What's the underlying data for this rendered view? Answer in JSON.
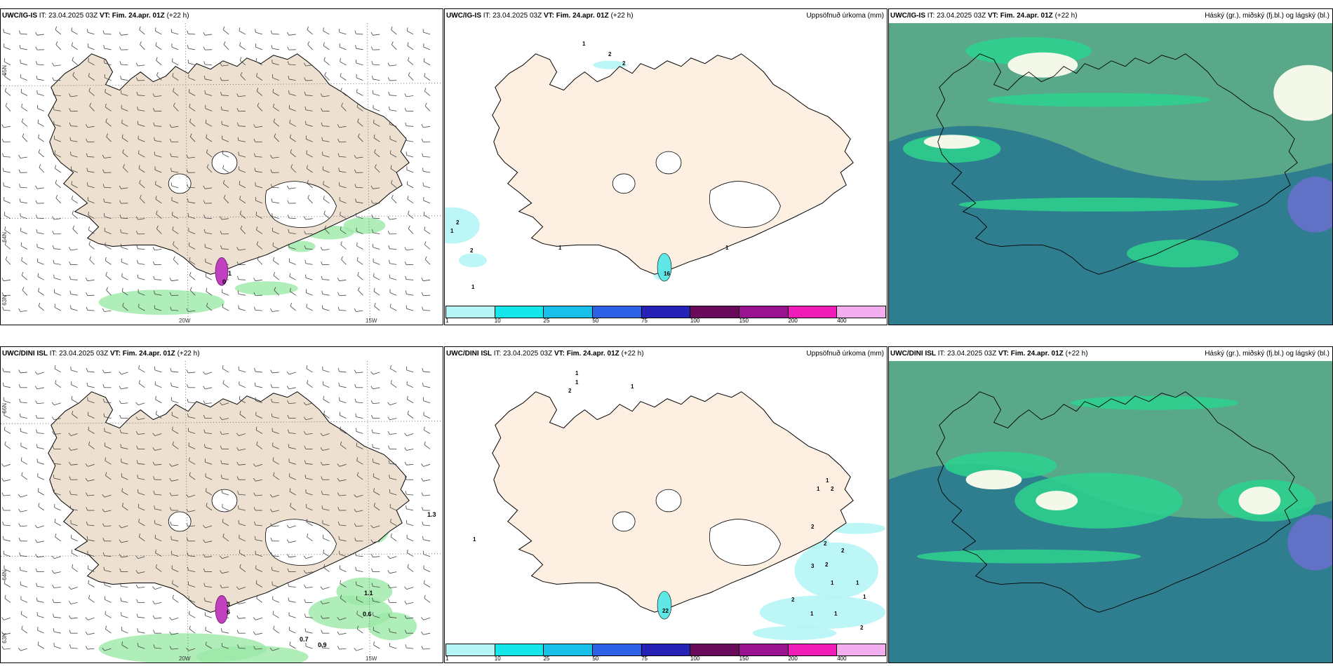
{
  "colors": {
    "land": "#ede0d0",
    "land_light": "#fdf0e3",
    "cloud_dark": "#2f7e8f",
    "cloud_mid": "#5aa88a",
    "cloud_green": "#2ecf8e",
    "cloud_light": "#c9e9b2",
    "precip_green": "#9be8a8",
    "precip_cyan": "#5fe6e6",
    "purple": "#c040c0"
  },
  "rows": [
    {
      "model": "UWC/IG-IS",
      "wind_panel": {
        "header_it_label": "IT:",
        "header_it": "23.04.2025 03Z",
        "header_vt_label": "VT:",
        "header_vt": "Fim. 24.apr. 01Z",
        "header_lead": "(+22 h)",
        "lat_labels": [
          "65N",
          "64N",
          "63N"
        ],
        "lon_labels": [
          "20W",
          "15W"
        ],
        "values": [
          "1",
          "0"
        ]
      },
      "precip_panel": {
        "header_it_label": "IT:",
        "header_it": "23.04.2025 03Z",
        "header_vt_label": "VT:",
        "header_vt": "Fim. 24.apr. 01Z",
        "header_lead": "(+22 h)",
        "title": "Uppsöfnuð úrkoma (mm)",
        "values": [
          "1",
          "2",
          "2",
          "2",
          "1",
          "2",
          "1",
          "1",
          "1",
          "16"
        ]
      },
      "cloud_panel": {
        "header_it_label": "IT:",
        "header_it": "23.04.2025 03Z",
        "header_vt_label": "VT:",
        "header_vt": "Fim. 24.apr. 01Z",
        "header_lead": "(+22 h)",
        "title": "Háský (gr.), miðský (fj.bl.) og lágský (bl.)"
      }
    },
    {
      "model": "UWC/DINI ISL",
      "wind_panel": {
        "header_it_label": "IT:",
        "header_it": "23.04.2025 03Z",
        "header_vt_label": "VT:",
        "header_vt": "Fim. 24.apr. 01Z",
        "header_lead": "(+22 h)",
        "lat_labels": [
          "66N",
          "64N",
          "63N"
        ],
        "lon_labels": [
          "20W",
          "15W"
        ],
        "values": [
          "1.3",
          "1.1",
          "0.6",
          "0.7",
          "0.9",
          "3",
          "6"
        ]
      },
      "precip_panel": {
        "header_it_label": "IT:",
        "header_it": "23.04.2025 03Z",
        "header_vt_label": "VT:",
        "header_vt": "Fim. 24.apr. 01Z",
        "header_lead": "(+22 h)",
        "title": "Uppsöfnuð úrkoma (mm)",
        "values": [
          "1",
          "1",
          "2",
          "1",
          "1",
          "1",
          "1",
          "2",
          "2",
          "2",
          "3",
          "2",
          "2",
          "1",
          "1",
          "2",
          "1",
          "1",
          "2",
          "1",
          "22"
        ]
      },
      "cloud_panel": {
        "header_it_label": "IT:",
        "header_it": "23.04.2025 03Z",
        "header_vt_label": "VT:",
        "header_vt": "Fim. 24.apr. 01Z",
        "header_lead": "(+22 h)",
        "title": "Háský (gr.), miðský (fj.bl.) og lágský (bl.)"
      }
    }
  ],
  "legend": {
    "labels": [
      "1",
      "10",
      "25",
      "50",
      "75",
      "100",
      "150",
      "200",
      "400"
    ],
    "colors": [
      "#b6f5f5",
      "#14e6ea",
      "#18bfe8",
      "#2e62e6",
      "#2622b8",
      "#6a0a5a",
      "#9a1290",
      "#f01cb8",
      "#f4aef0"
    ]
  }
}
